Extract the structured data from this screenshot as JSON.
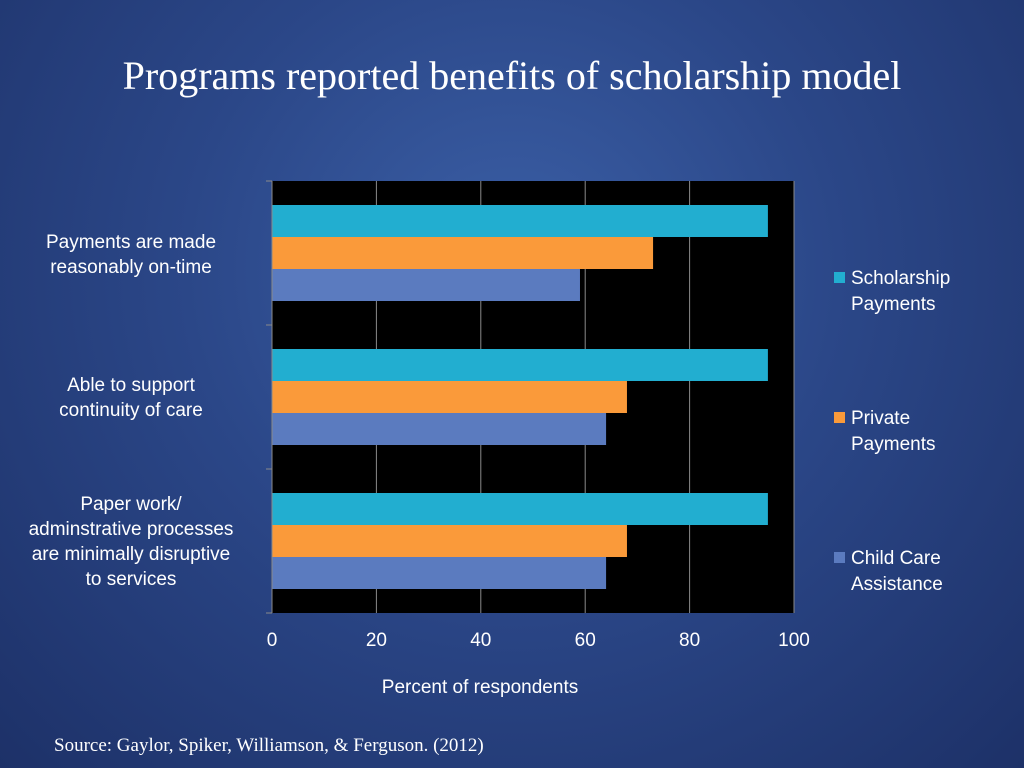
{
  "slide": {
    "title": "Programs reported benefits of scholarship model",
    "source": "Source: Gaylor, Spiker, Williamson, & Ferguson. (2012)"
  },
  "colors": {
    "background": "#2b4788",
    "plot_background": "#000000",
    "scholarship": "#22aed0",
    "private": "#fa9a3a",
    "child_care": "#5b7bbf"
  },
  "chart_data": {
    "type": "bar",
    "orientation": "horizontal",
    "title": "Programs reported benefits of scholarship model",
    "xlabel": "Percent of respondents",
    "ylabel": "",
    "xlim": [
      0,
      100
    ],
    "x_ticks": [
      0,
      20,
      40,
      60,
      80,
      100
    ],
    "grid": "vertical",
    "legend_position": "right",
    "categories": [
      "Payments are made\nreasonably on-time",
      "Able to support\ncontinuity of care",
      "Paper work/\nadminstrative processes\nare minimally disruptive\nto services"
    ],
    "series": [
      {
        "name": "Scholarship\nPayments",
        "color": "#22aed0",
        "values": [
          95,
          95,
          95
        ]
      },
      {
        "name": "Private\nPayments",
        "color": "#fa9a3a",
        "values": [
          73,
          68,
          68
        ]
      },
      {
        "name": "Child Care\nAssistance",
        "color": "#5b7bbf",
        "values": [
          59,
          64,
          64
        ]
      }
    ]
  }
}
